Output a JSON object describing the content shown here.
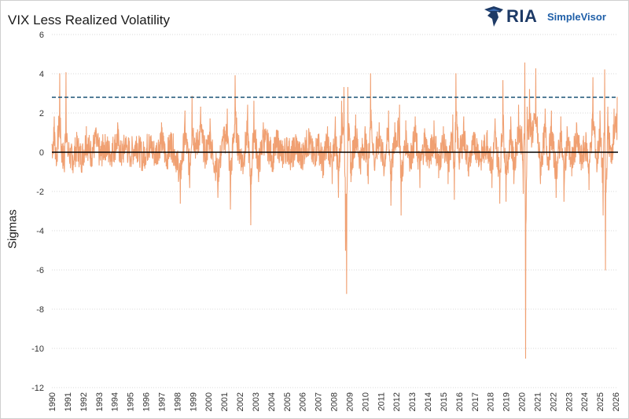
{
  "title": "VIX Less Realized Volatility",
  "logo": {
    "text_main": "RIA",
    "text_sub": "SimpleVisor"
  },
  "colors": {
    "series": "#f0a072",
    "zero_line": "#000000",
    "reference_line": "#1a5276",
    "grid": "#d9d9d9"
  },
  "chart_data": {
    "type": "line",
    "title": "VIX Less Realized Volatility",
    "xlabel": "",
    "ylabel": "Sigmas",
    "xlim": [
      1990,
      2026.15
    ],
    "ylim": [
      -12,
      6
    ],
    "yticks": [
      6,
      4,
      2,
      0,
      -2,
      -4,
      -6,
      -8,
      -10,
      -12
    ],
    "xticks": [
      "1990",
      "1991",
      "1992",
      "1993",
      "1994",
      "1995",
      "1996",
      "1997",
      "1998",
      "1999",
      "2000",
      "2001",
      "2002",
      "2003",
      "2004",
      "2005",
      "2006",
      "2007",
      "2008",
      "2009",
      "2010",
      "2011",
      "2012",
      "2013",
      "2014",
      "2015",
      "2016",
      "2017",
      "2018",
      "2019",
      "2020",
      "2021",
      "2022",
      "2023",
      "2024",
      "2025",
      "2026"
    ],
    "grid": true,
    "reference_lines": [
      {
        "type": "horizontal",
        "y": 0,
        "style": "solid",
        "color": "#000000"
      },
      {
        "type": "horizontal",
        "y": 2.8,
        "style": "dashed",
        "color": "#1a5276"
      }
    ],
    "series": [
      {
        "values": [
          [
            1990.0,
            0.4
          ],
          [
            1990.15,
            1.8
          ],
          [
            1990.3,
            -0.6
          ],
          [
            1990.5,
            4.0
          ],
          [
            1990.6,
            0.3
          ],
          [
            1990.8,
            -1.0
          ],
          [
            1990.9,
            4.05
          ],
          [
            1991.0,
            0.2
          ],
          [
            1991.3,
            -0.9
          ],
          [
            1991.6,
            0.6
          ],
          [
            1991.9,
            -0.7
          ],
          [
            1992.2,
            1.3
          ],
          [
            1992.5,
            -0.2
          ],
          [
            1992.8,
            1.2
          ],
          [
            1993.1,
            -0.4
          ],
          [
            1993.4,
            0.9
          ],
          [
            1993.7,
            -0.3
          ],
          [
            1994.0,
            0.6
          ],
          [
            1994.2,
            1.5
          ],
          [
            1994.4,
            -0.5
          ],
          [
            1994.7,
            0.7
          ],
          [
            1995.0,
            -0.2
          ],
          [
            1995.4,
            0.8
          ],
          [
            1995.8,
            -0.6
          ],
          [
            1996.2,
            0.9
          ],
          [
            1996.6,
            -0.3
          ],
          [
            1997.0,
            1.5
          ],
          [
            1997.3,
            -0.7
          ],
          [
            1997.6,
            1.0
          ],
          [
            1997.8,
            0.1
          ],
          [
            1998.0,
            -0.9
          ],
          [
            1998.2,
            -2.6
          ],
          [
            1998.5,
            2.1
          ],
          [
            1998.8,
            -1.8
          ],
          [
            1998.95,
            2.85
          ],
          [
            1999.2,
            0.5
          ],
          [
            1999.5,
            2.3
          ],
          [
            1999.8,
            -0.4
          ],
          [
            2000.1,
            1.7
          ],
          [
            2000.3,
            -0.6
          ],
          [
            2000.6,
            -2.3
          ],
          [
            2000.9,
            0.8
          ],
          [
            2001.2,
            2.2
          ],
          [
            2001.4,
            -2.9
          ],
          [
            2001.7,
            3.9
          ],
          [
            2001.9,
            0.5
          ],
          [
            2002.2,
            -1.1
          ],
          [
            2002.5,
            2.4
          ],
          [
            2002.7,
            -3.7
          ],
          [
            2002.9,
            2.6
          ],
          [
            2003.2,
            -1.5
          ],
          [
            2003.5,
            1.5
          ],
          [
            2003.8,
            0.7
          ],
          [
            2004.1,
            -0.6
          ],
          [
            2004.4,
            1.1
          ],
          [
            2004.7,
            -0.4
          ],
          [
            2005.0,
            0.6
          ],
          [
            2005.3,
            -0.5
          ],
          [
            2005.6,
            0.8
          ],
          [
            2005.9,
            -0.8
          ],
          [
            2006.2,
            0.6
          ],
          [
            2006.4,
            1.2
          ],
          [
            2006.7,
            -0.6
          ],
          [
            2007.0,
            0.9
          ],
          [
            2007.3,
            -1.3
          ],
          [
            2007.6,
            1.3
          ],
          [
            2007.9,
            -1.6
          ],
          [
            2008.1,
            1.8
          ],
          [
            2008.3,
            -2.3
          ],
          [
            2008.5,
            2.6
          ],
          [
            2008.65,
            3.3
          ],
          [
            2008.75,
            -5.0
          ],
          [
            2008.82,
            -7.2
          ],
          [
            2008.9,
            3.3
          ],
          [
            2009.1,
            -1.5
          ],
          [
            2009.4,
            1.9
          ],
          [
            2009.7,
            -0.9
          ],
          [
            2010.0,
            1.3
          ],
          [
            2010.2,
            -1.6
          ],
          [
            2010.35,
            4.0
          ],
          [
            2010.6,
            -0.9
          ],
          [
            2010.9,
            1.5
          ],
          [
            2011.2,
            -1.2
          ],
          [
            2011.5,
            2.1
          ],
          [
            2011.65,
            -2.7
          ],
          [
            2011.9,
            1.5
          ],
          [
            2012.2,
            2.4
          ],
          [
            2012.3,
            -3.2
          ],
          [
            2012.6,
            1.6
          ],
          [
            2012.9,
            -0.8
          ],
          [
            2013.2,
            1.8
          ],
          [
            2013.5,
            -1.8
          ],
          [
            2013.8,
            1.2
          ],
          [
            2014.1,
            -0.8
          ],
          [
            2014.4,
            1.6
          ],
          [
            2014.7,
            -1.3
          ],
          [
            2015.0,
            1.3
          ],
          [
            2015.3,
            -1.6
          ],
          [
            2015.6,
            1.9
          ],
          [
            2015.7,
            -2.4
          ],
          [
            2015.8,
            4.0
          ],
          [
            2016.0,
            -0.5
          ],
          [
            2016.3,
            1.8
          ],
          [
            2016.6,
            -1.2
          ],
          [
            2017.0,
            1.0
          ],
          [
            2017.4,
            -0.6
          ],
          [
            2017.8,
            1.1
          ],
          [
            2018.1,
            -1.8
          ],
          [
            2018.3,
            1.7
          ],
          [
            2018.6,
            -2.6
          ],
          [
            2018.8,
            3.65
          ],
          [
            2019.0,
            -2.5
          ],
          [
            2019.3,
            1.8
          ],
          [
            2019.5,
            -1.6
          ],
          [
            2019.8,
            2.4
          ],
          [
            2020.0,
            1.3
          ],
          [
            2020.1,
            -2.1
          ],
          [
            2020.2,
            4.55
          ],
          [
            2020.25,
            -10.5
          ],
          [
            2020.35,
            2.3
          ],
          [
            2020.5,
            3.2
          ],
          [
            2020.7,
            1.6
          ],
          [
            2020.9,
            4.25
          ],
          [
            2021.0,
            1.8
          ],
          [
            2021.2,
            -1.6
          ],
          [
            2021.5,
            2.2
          ],
          [
            2021.7,
            -0.9
          ],
          [
            2021.9,
            2.1
          ],
          [
            2022.2,
            -2.3
          ],
          [
            2022.5,
            1.8
          ],
          [
            2022.7,
            -2.5
          ],
          [
            2022.9,
            1.3
          ],
          [
            2023.2,
            -1.2
          ],
          [
            2023.5,
            1.5
          ],
          [
            2023.8,
            -0.9
          ],
          [
            2024.1,
            1.0
          ],
          [
            2024.3,
            -1.9
          ],
          [
            2024.55,
            3.8
          ],
          [
            2024.8,
            -1.0
          ],
          [
            2025.0,
            2.1
          ],
          [
            2025.2,
            -3.2
          ],
          [
            2025.3,
            4.2
          ],
          [
            2025.35,
            -6.0
          ],
          [
            2025.5,
            2.3
          ],
          [
            2025.7,
            -0.5
          ],
          [
            2025.9,
            2.2
          ],
          [
            2026.1,
            2.8
          ]
        ]
      }
    ]
  }
}
